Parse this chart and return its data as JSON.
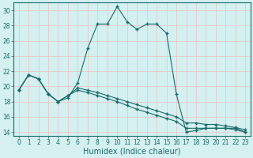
{
  "xlabel": "Humidex (Indice chaleur)",
  "ylabel": "",
  "background_color": "#d4f0f0",
  "grid_color": "#e8c8c8",
  "line_color": "#1a6b6b",
  "xlim": [
    -0.5,
    23.5
  ],
  "ylim": [
    13.5,
    31
  ],
  "yticks": [
    14,
    16,
    18,
    20,
    22,
    24,
    26,
    28,
    30
  ],
  "xticks": [
    0,
    1,
    2,
    3,
    4,
    5,
    6,
    7,
    8,
    9,
    10,
    11,
    12,
    13,
    14,
    15,
    16,
    17,
    18,
    19,
    20,
    21,
    22,
    23
  ],
  "series1_x": [
    0,
    1,
    2,
    3,
    4,
    5,
    6,
    7,
    8,
    9,
    10,
    11,
    12,
    13,
    14,
    15,
    16,
    17,
    18,
    19,
    20,
    21,
    22,
    23
  ],
  "series1_y": [
    19.5,
    21.5,
    21.0,
    19.0,
    18.0,
    18.5,
    20.5,
    25.0,
    28.2,
    28.2,
    30.5,
    28.5,
    27.5,
    28.2,
    28.2,
    27.0,
    19.0,
    14.0,
    14.2,
    14.5,
    14.5,
    14.5,
    14.5,
    14.0
  ],
  "series2_x": [
    0,
    1,
    2,
    3,
    4,
    5,
    6,
    7,
    8,
    9,
    10,
    11,
    12,
    13,
    14,
    15,
    16,
    17,
    18,
    19,
    20,
    21,
    22,
    23
  ],
  "series2_y": [
    19.5,
    21.5,
    21.0,
    19.0,
    18.0,
    18.8,
    19.5,
    19.2,
    18.8,
    18.4,
    18.0,
    17.5,
    17.0,
    16.6,
    16.2,
    15.8,
    15.4,
    14.5,
    14.5,
    14.5,
    14.5,
    14.5,
    14.3,
    14.0
  ],
  "series3_x": [
    0,
    1,
    2,
    3,
    4,
    5,
    6,
    7,
    8,
    9,
    10,
    11,
    12,
    13,
    14,
    15,
    16,
    17,
    18,
    19,
    20,
    21,
    22,
    23
  ],
  "series3_y": [
    19.5,
    21.5,
    21.0,
    19.0,
    18.0,
    18.8,
    19.8,
    19.5,
    19.2,
    18.8,
    18.4,
    18.0,
    17.6,
    17.2,
    16.8,
    16.4,
    16.0,
    15.2,
    15.2,
    15.0,
    15.0,
    14.8,
    14.6,
    14.3
  ],
  "marker": "+",
  "markersize": 3.5,
  "linewidth": 0.8,
  "label_fontsize": 7,
  "tick_fontsize": 5.5
}
